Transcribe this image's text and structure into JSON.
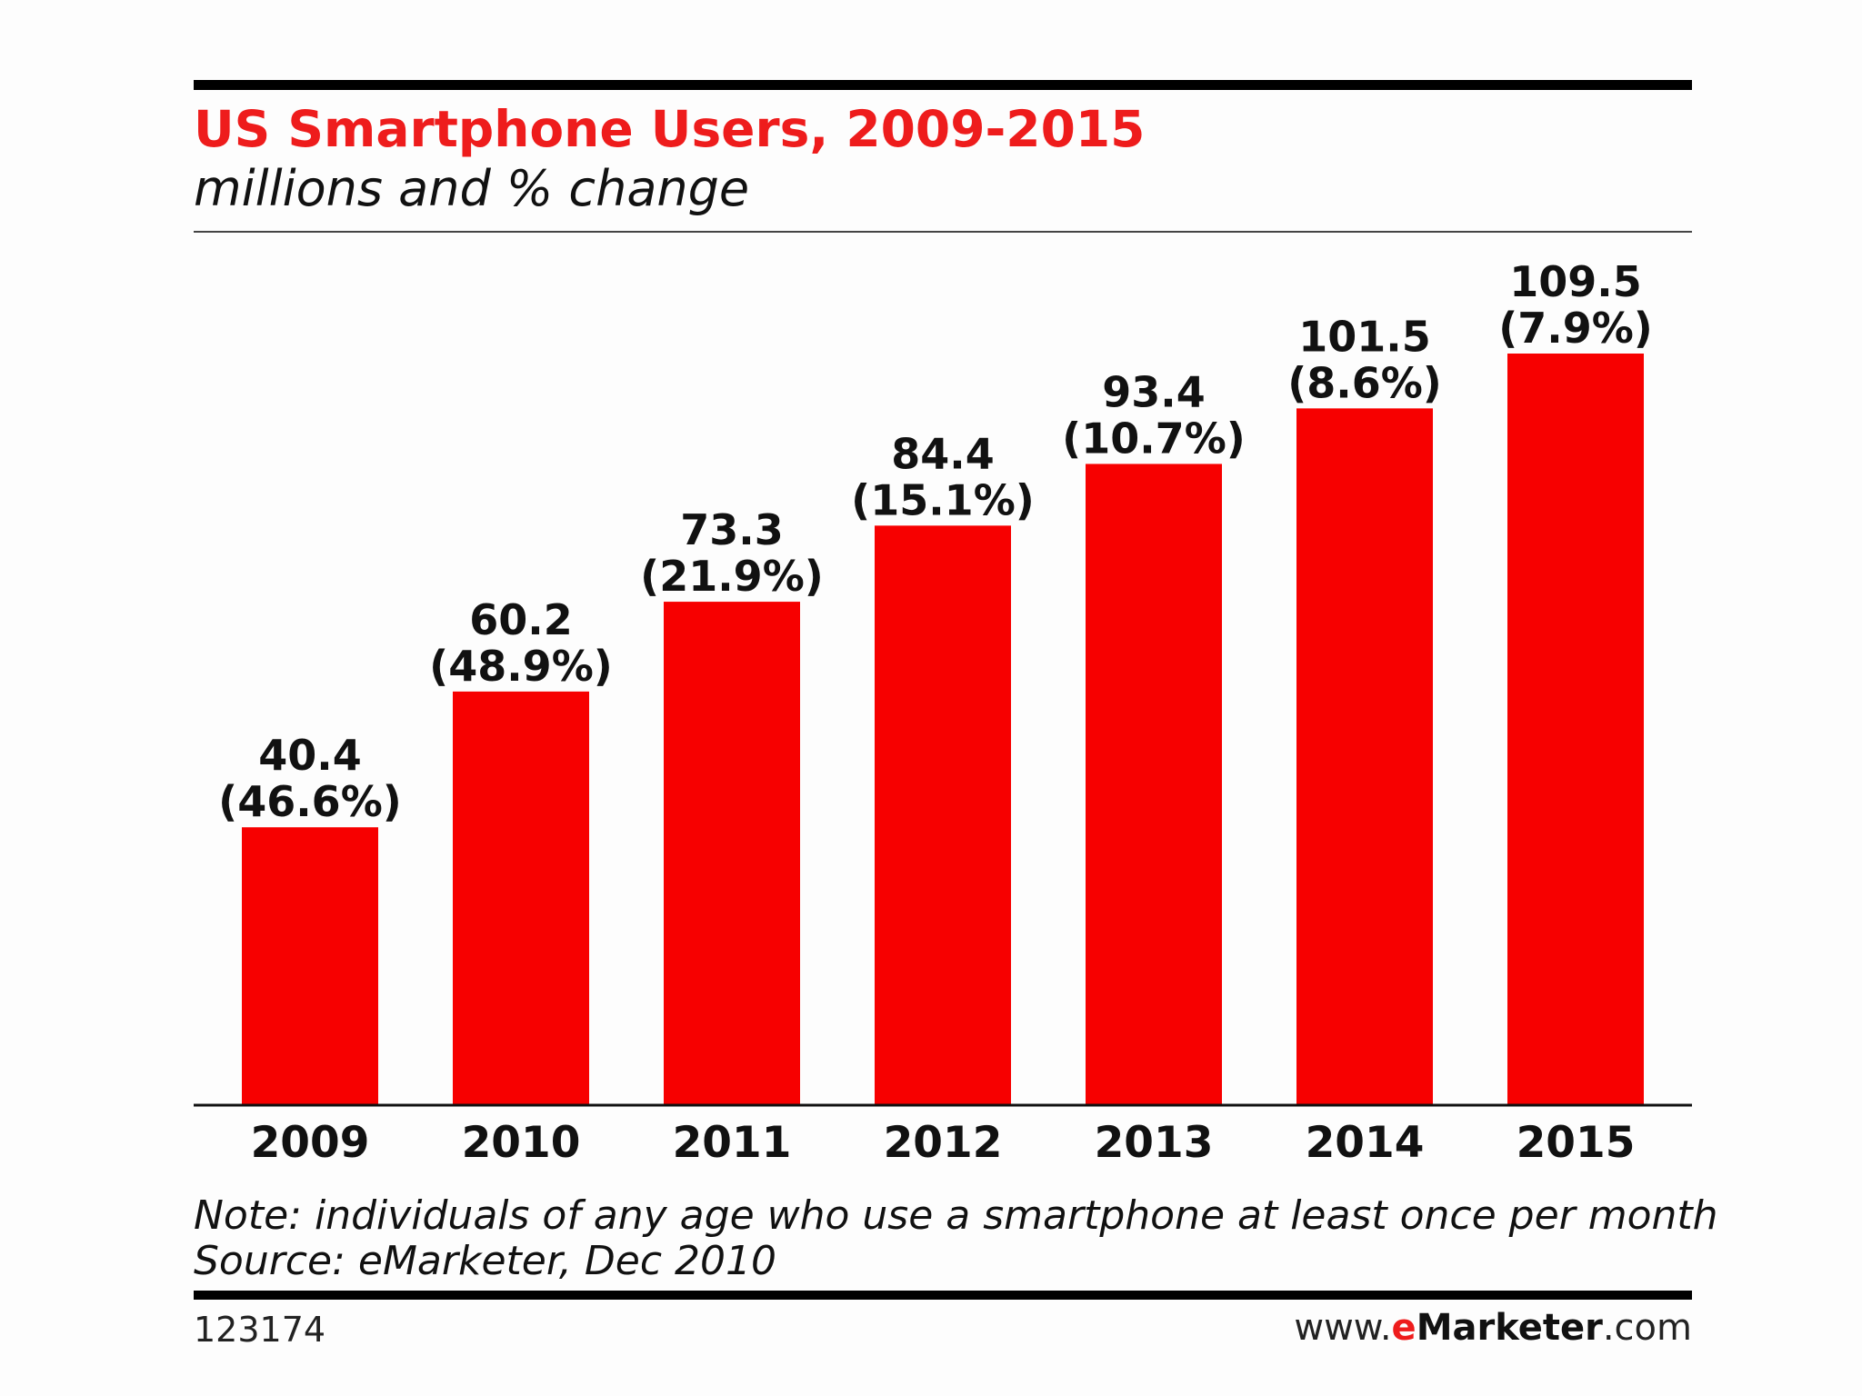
{
  "header": {
    "title": "US Smartphone Users, 2009-2015",
    "subtitle": "millions and % change"
  },
  "chart_data": {
    "type": "bar",
    "title": "US Smartphone Users, 2009-2015",
    "subtitle": "millions and % change",
    "categories": [
      "2009",
      "2010",
      "2011",
      "2012",
      "2013",
      "2014",
      "2015"
    ],
    "values": [
      40.4,
      60.2,
      73.3,
      84.4,
      93.4,
      101.5,
      109.5
    ],
    "pct_change": [
      "46.6%",
      "48.9%",
      "21.9%",
      "15.1%",
      "10.7%",
      "8.6%",
      "7.9%"
    ],
    "bar_labels": [
      {
        "value": "40.4",
        "change": "(46.6%)"
      },
      {
        "value": "60.2",
        "change": "(48.9%)"
      },
      {
        "value": "73.3",
        "change": "(21.9%)"
      },
      {
        "value": "84.4",
        "change": "(15.1%)"
      },
      {
        "value": "93.4",
        "change": "(10.7%)"
      },
      {
        "value": "101.5",
        "change": "(8.6%)"
      },
      {
        "value": "109.5",
        "change": "(7.9%)"
      }
    ],
    "xlabel": "",
    "ylabel": "",
    "ylim": [
      0,
      109.5
    ],
    "grid": false,
    "legend": "none",
    "bar_color": "#f70000"
  },
  "footer": {
    "note": "Note: individuals of any age who use a smartphone at least once per month",
    "source": "Source: eMarketer, Dec 2010",
    "chart_id": "123174",
    "brand_prefix": "www.",
    "brand_e": "e",
    "brand_name": "Marketer",
    "brand_suffix": ".com"
  },
  "colors": {
    "accent": "#ee1c1c",
    "bars": "#f70000",
    "text": "#111111",
    "background": "#fdfdfd"
  }
}
